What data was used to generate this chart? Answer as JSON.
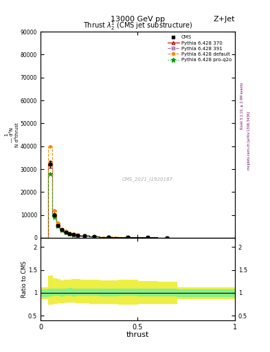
{
  "title_top": "13000 GeV pp",
  "title_right": "Z+Jet",
  "plot_title": "Thrust $\\lambda$_2$^1$ (CMS jet substructure)",
  "watermark": "CMS_2021_I1920187",
  "right_label_top": "Rivet 3.1.10, ≥ 2.4M events",
  "right_label_bottom": "mcplots.cern.ch [arXiv:1306.3436]",
  "xlabel": "thrust",
  "ylabel_ratio": "Ratio to CMS",
  "ylim_main": [
    0,
    90000
  ],
  "ylim_ratio": [
    0.4,
    2.2
  ],
  "xlim": [
    0.0,
    1.0
  ],
  "yticks_main": [
    0,
    10000,
    20000,
    30000,
    40000,
    50000,
    60000,
    70000,
    80000,
    90000
  ],
  "ytick_labels_main": [
    "0",
    "10000",
    "20000",
    "30000",
    "40000",
    "50000",
    "60000",
    "70000",
    "80000",
    "90000"
  ],
  "yticks_ratio": [
    0.5,
    1.0,
    1.5,
    2.0
  ],
  "xticks": [
    0.0,
    0.5,
    1.0
  ],
  "xtick_labels": [
    "0",
    "0.5",
    "1"
  ],
  "thrust_bins": [
    0.0,
    0.02,
    0.04,
    0.06,
    0.08,
    0.1,
    0.12,
    0.14,
    0.16,
    0.18,
    0.2,
    0.25,
    0.3,
    0.4,
    0.5,
    0.6,
    0.7,
    1.0
  ],
  "cms_data": [
    0,
    0,
    32000,
    10000,
    5500,
    3500,
    2500,
    1800,
    1400,
    1100,
    900,
    600,
    400,
    250,
    150,
    80,
    0
  ],
  "cms_errors": [
    0,
    0,
    1500,
    500,
    200,
    150,
    100,
    80,
    60,
    50,
    40,
    30,
    20,
    15,
    10,
    5,
    0
  ],
  "py370_data": [
    0,
    0,
    33000,
    10500,
    5700,
    3600,
    2600,
    1900,
    1450,
    1150,
    950,
    620,
    410,
    260,
    155,
    82,
    0
  ],
  "py391_data": [
    0,
    0,
    32500,
    10200,
    5600,
    3550,
    2550,
    1850,
    1420,
    1120,
    920,
    610,
    405,
    255,
    152,
    81,
    0
  ],
  "pydef_data": [
    0,
    0,
    40000,
    12000,
    6500,
    4000,
    2900,
    2100,
    1650,
    1300,
    1050,
    700,
    460,
    290,
    170,
    90,
    0
  ],
  "pyq2o_data": [
    0,
    0,
    28000,
    9000,
    5000,
    3200,
    2300,
    1650,
    1300,
    1000,
    820,
    540,
    360,
    220,
    135,
    72,
    0
  ],
  "cms_color": "#000000",
  "py370_color": "#cc0000",
  "py391_color": "#9966aa",
  "pydef_color": "#ff8800",
  "pyq2o_color": "#009900",
  "ratio_band_yellow": "#eeee44",
  "ratio_band_green": "#88ee88",
  "legend_labels": [
    "CMS",
    "Pythia 6.428 370",
    "Pythia 6.428 391",
    "Pythia 6.428 default",
    "Pythia 6.428 pro-q2o"
  ]
}
